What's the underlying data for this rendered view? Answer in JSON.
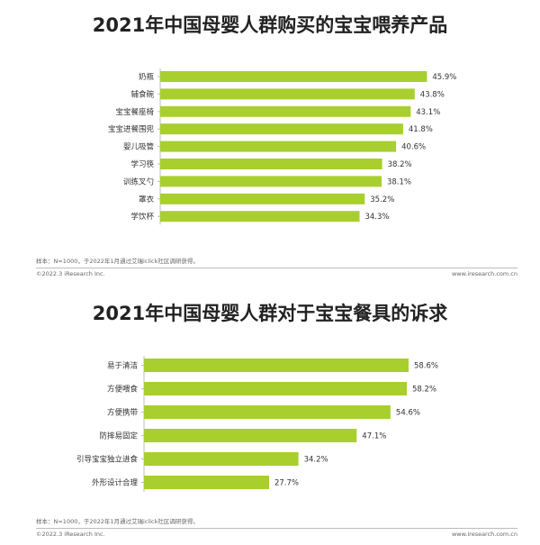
{
  "colors": {
    "bar": "#a8cf2e",
    "axis": "#bfbfbf"
  },
  "chart_data": [
    {
      "type": "bar",
      "orientation": "horizontal",
      "title": "2021年中国母婴人群购买的宝宝喂养产品",
      "categories": [
        "奶瓶",
        "辅食碗",
        "宝宝餐座椅",
        "宝宝进餐围兜",
        "婴儿吸管",
        "学习筷",
        "训练叉勺",
        "罩衣",
        "学饮杯"
      ],
      "values": [
        45.9,
        43.8,
        43.1,
        41.8,
        40.6,
        38.2,
        38.1,
        35.2,
        34.3
      ],
      "value_labels": [
        "45.9%",
        "43.8%",
        "43.1%",
        "41.8%",
        "40.6%",
        "38.2%",
        "38.1%",
        "35.2%",
        "34.3%"
      ],
      "unit": "%",
      "xlim": [
        0,
        46
      ]
    },
    {
      "type": "bar",
      "orientation": "horizontal",
      "title": "2021年中国母婴人群对于宝宝餐具的诉求",
      "categories": [
        "易于清洁",
        "方便喂食",
        "方便携带",
        "防摔易固定",
        "引导宝宝独立进食",
        "外形设计合理"
      ],
      "values": [
        58.6,
        58.2,
        54.6,
        47.1,
        34.2,
        27.7
      ],
      "value_labels": [
        "58.6%",
        "58.2%",
        "54.6%",
        "47.1%",
        "34.2%",
        "27.7%"
      ],
      "unit": "%",
      "xlim": [
        0,
        59
      ]
    }
  ],
  "footer": {
    "note": "样本：N=1000，于2022年1月通过艾瑞iclick社区调研获得。",
    "copyright": "©2022.3 iResearch Inc.",
    "site": "www.iresearch.com.cn"
  }
}
